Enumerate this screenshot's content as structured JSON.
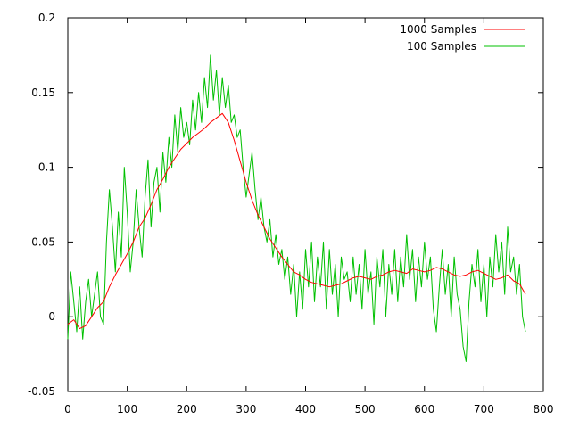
{
  "chart_data": {
    "type": "line",
    "title": "",
    "xlabel": "",
    "ylabel": "",
    "xlim": [
      0,
      800
    ],
    "ylim": [
      -0.05,
      0.2
    ],
    "x_ticks": [
      0,
      100,
      200,
      300,
      400,
      500,
      600,
      700,
      800
    ],
    "x_tick_labels": [
      "0",
      "100",
      "200",
      "300",
      "400",
      "500",
      "600",
      "700",
      "800"
    ],
    "y_ticks": [
      -0.05,
      0,
      0.05,
      0.1,
      0.15,
      0.2
    ],
    "y_tick_labels": [
      "-0.05",
      "0",
      "0.05",
      "0.1",
      "0.15",
      "0.2"
    ],
    "grid": false,
    "legend_position": "top-right",
    "series": [
      {
        "name": "1000 Samples",
        "color": "#ff0000",
        "points": [
          [
            0,
            -0.005
          ],
          [
            10,
            -0.002
          ],
          [
            20,
            -0.008
          ],
          [
            30,
            -0.006
          ],
          [
            40,
            0.0
          ],
          [
            50,
            0.006
          ],
          [
            60,
            0.01
          ],
          [
            70,
            0.02
          ],
          [
            80,
            0.028
          ],
          [
            90,
            0.035
          ],
          [
            100,
            0.042
          ],
          [
            110,
            0.05
          ],
          [
            120,
            0.06
          ],
          [
            130,
            0.066
          ],
          [
            140,
            0.075
          ],
          [
            150,
            0.085
          ],
          [
            160,
            0.092
          ],
          [
            170,
            0.1
          ],
          [
            180,
            0.106
          ],
          [
            190,
            0.112
          ],
          [
            200,
            0.116
          ],
          [
            210,
            0.12
          ],
          [
            220,
            0.123
          ],
          [
            230,
            0.126
          ],
          [
            240,
            0.13
          ],
          [
            250,
            0.133
          ],
          [
            260,
            0.136
          ],
          [
            270,
            0.13
          ],
          [
            280,
            0.118
          ],
          [
            290,
            0.104
          ],
          [
            300,
            0.09
          ],
          [
            310,
            0.078
          ],
          [
            320,
            0.068
          ],
          [
            330,
            0.06
          ],
          [
            340,
            0.052
          ],
          [
            350,
            0.046
          ],
          [
            360,
            0.04
          ],
          [
            370,
            0.035
          ],
          [
            380,
            0.03
          ],
          [
            390,
            0.028
          ],
          [
            400,
            0.025
          ],
          [
            410,
            0.023
          ],
          [
            420,
            0.022
          ],
          [
            430,
            0.021
          ],
          [
            440,
            0.02
          ],
          [
            450,
            0.021
          ],
          [
            460,
            0.022
          ],
          [
            470,
            0.024
          ],
          [
            480,
            0.026
          ],
          [
            490,
            0.027
          ],
          [
            500,
            0.026
          ],
          [
            510,
            0.025
          ],
          [
            520,
            0.027
          ],
          [
            530,
            0.028
          ],
          [
            540,
            0.03
          ],
          [
            550,
            0.031
          ],
          [
            560,
            0.03
          ],
          [
            570,
            0.029
          ],
          [
            580,
            0.032
          ],
          [
            590,
            0.031
          ],
          [
            600,
            0.03
          ],
          [
            610,
            0.031
          ],
          [
            620,
            0.033
          ],
          [
            630,
            0.032
          ],
          [
            640,
            0.03
          ],
          [
            650,
            0.028
          ],
          [
            660,
            0.027
          ],
          [
            670,
            0.028
          ],
          [
            680,
            0.03
          ],
          [
            690,
            0.031
          ],
          [
            700,
            0.029
          ],
          [
            710,
            0.027
          ],
          [
            720,
            0.025
          ],
          [
            730,
            0.026
          ],
          [
            740,
            0.028
          ],
          [
            750,
            0.024
          ],
          [
            760,
            0.022
          ],
          [
            770,
            0.015
          ]
        ]
      },
      {
        "name": "100 Samples",
        "color": "#00c000",
        "points": [
          [
            0,
            -0.015
          ],
          [
            5,
            0.03
          ],
          [
            10,
            0.01
          ],
          [
            15,
            -0.01
          ],
          [
            20,
            0.02
          ],
          [
            25,
            -0.015
          ],
          [
            30,
            0.01
          ],
          [
            35,
            0.025
          ],
          [
            40,
            0.0
          ],
          [
            45,
            0.015
          ],
          [
            50,
            0.03
          ],
          [
            55,
            0.0
          ],
          [
            60,
            -0.005
          ],
          [
            65,
            0.05
          ],
          [
            70,
            0.085
          ],
          [
            75,
            0.06
          ],
          [
            80,
            0.03
          ],
          [
            85,
            0.07
          ],
          [
            90,
            0.04
          ],
          [
            95,
            0.1
          ],
          [
            100,
            0.07
          ],
          [
            105,
            0.03
          ],
          [
            110,
            0.05
          ],
          [
            115,
            0.085
          ],
          [
            120,
            0.06
          ],
          [
            125,
            0.04
          ],
          [
            130,
            0.08
          ],
          [
            135,
            0.105
          ],
          [
            140,
            0.06
          ],
          [
            145,
            0.09
          ],
          [
            150,
            0.1
          ],
          [
            155,
            0.07
          ],
          [
            160,
            0.11
          ],
          [
            165,
            0.09
          ],
          [
            170,
            0.12
          ],
          [
            175,
            0.1
          ],
          [
            180,
            0.135
          ],
          [
            185,
            0.11
          ],
          [
            190,
            0.14
          ],
          [
            195,
            0.12
          ],
          [
            200,
            0.13
          ],
          [
            205,
            0.115
          ],
          [
            210,
            0.145
          ],
          [
            215,
            0.125
          ],
          [
            220,
            0.15
          ],
          [
            225,
            0.13
          ],
          [
            230,
            0.16
          ],
          [
            235,
            0.14
          ],
          [
            240,
            0.175
          ],
          [
            245,
            0.145
          ],
          [
            250,
            0.165
          ],
          [
            255,
            0.135
          ],
          [
            260,
            0.16
          ],
          [
            265,
            0.14
          ],
          [
            270,
            0.155
          ],
          [
            275,
            0.13
          ],
          [
            280,
            0.135
          ],
          [
            285,
            0.12
          ],
          [
            290,
            0.125
          ],
          [
            295,
            0.1
          ],
          [
            300,
            0.08
          ],
          [
            305,
            0.095
          ],
          [
            310,
            0.11
          ],
          [
            315,
            0.085
          ],
          [
            320,
            0.065
          ],
          [
            325,
            0.08
          ],
          [
            330,
            0.06
          ],
          [
            335,
            0.05
          ],
          [
            340,
            0.065
          ],
          [
            345,
            0.04
          ],
          [
            350,
            0.055
          ],
          [
            355,
            0.035
          ],
          [
            360,
            0.045
          ],
          [
            365,
            0.025
          ],
          [
            370,
            0.04
          ],
          [
            375,
            0.015
          ],
          [
            380,
            0.035
          ],
          [
            385,
            0.0
          ],
          [
            390,
            0.03
          ],
          [
            395,
            0.005
          ],
          [
            400,
            0.045
          ],
          [
            405,
            0.02
          ],
          [
            410,
            0.05
          ],
          [
            415,
            0.01
          ],
          [
            420,
            0.04
          ],
          [
            425,
            0.02
          ],
          [
            430,
            0.05
          ],
          [
            435,
            0.005
          ],
          [
            440,
            0.045
          ],
          [
            445,
            0.015
          ],
          [
            450,
            0.035
          ],
          [
            455,
            0.0
          ],
          [
            460,
            0.04
          ],
          [
            465,
            0.025
          ],
          [
            470,
            0.03
          ],
          [
            475,
            0.01
          ],
          [
            480,
            0.04
          ],
          [
            485,
            0.015
          ],
          [
            490,
            0.035
          ],
          [
            495,
            0.005
          ],
          [
            500,
            0.045
          ],
          [
            505,
            0.015
          ],
          [
            510,
            0.03
          ],
          [
            515,
            -0.005
          ],
          [
            520,
            0.04
          ],
          [
            525,
            0.02
          ],
          [
            530,
            0.045
          ],
          [
            535,
            0.0
          ],
          [
            540,
            0.035
          ],
          [
            545,
            0.015
          ],
          [
            550,
            0.045
          ],
          [
            555,
            0.01
          ],
          [
            560,
            0.04
          ],
          [
            565,
            0.02
          ],
          [
            570,
            0.055
          ],
          [
            575,
            0.025
          ],
          [
            580,
            0.045
          ],
          [
            585,
            0.01
          ],
          [
            590,
            0.04
          ],
          [
            595,
            0.02
          ],
          [
            600,
            0.05
          ],
          [
            605,
            0.025
          ],
          [
            610,
            0.04
          ],
          [
            615,
            0.005
          ],
          [
            620,
            -0.01
          ],
          [
            625,
            0.02
          ],
          [
            630,
            0.045
          ],
          [
            635,
            0.015
          ],
          [
            640,
            0.035
          ],
          [
            645,
            0.0
          ],
          [
            650,
            0.04
          ],
          [
            655,
            0.015
          ],
          [
            660,
            0.005
          ],
          [
            665,
            -0.02
          ],
          [
            670,
            -0.03
          ],
          [
            675,
            0.01
          ],
          [
            680,
            0.035
          ],
          [
            685,
            0.02
          ],
          [
            690,
            0.045
          ],
          [
            695,
            0.01
          ],
          [
            700,
            0.035
          ],
          [
            705,
            0.0
          ],
          [
            710,
            0.04
          ],
          [
            715,
            0.02
          ],
          [
            720,
            0.055
          ],
          [
            725,
            0.03
          ],
          [
            730,
            0.05
          ],
          [
            735,
            0.015
          ],
          [
            740,
            0.06
          ],
          [
            745,
            0.03
          ],
          [
            750,
            0.04
          ],
          [
            755,
            0.015
          ],
          [
            760,
            0.035
          ],
          [
            765,
            0.0
          ],
          [
            770,
            -0.01
          ]
        ]
      }
    ]
  }
}
